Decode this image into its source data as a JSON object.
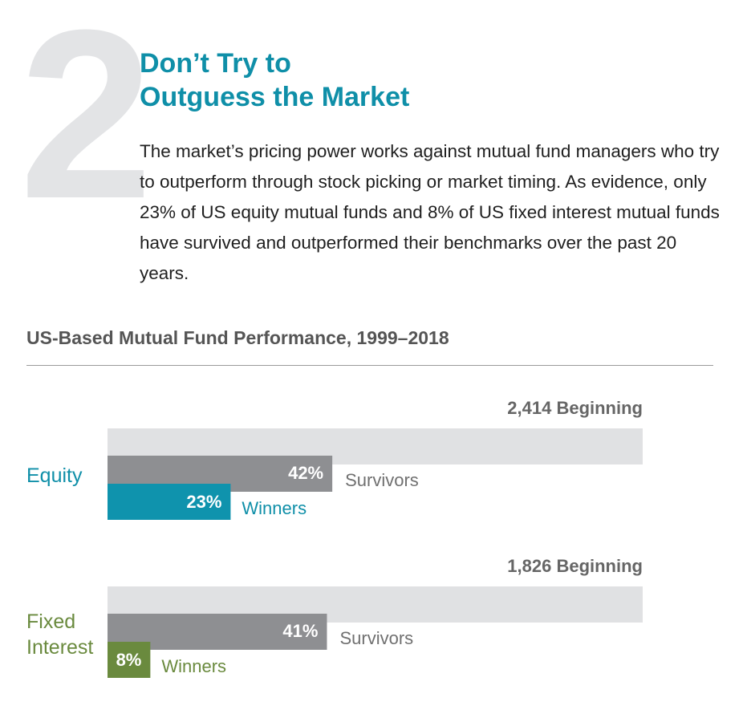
{
  "header": {
    "number": "2",
    "title_line1": "Don’t Try to",
    "title_line2": "Outguess the Market",
    "body": "The market’s pricing power works against mutual fund managers who try to outperform through stock picking or market timing. As evidence, only 23% of US equity mutual funds and 8% of US fixed interest mutual funds have survived and outperformed their benchmarks over the past 20 years."
  },
  "chart_data": {
    "type": "bar",
    "title": "US-Based Mutual Fund Performance, 1999–2018",
    "groups": [
      {
        "label_lines": [
          "Equity"
        ],
        "beginning_label": "2,414 Beginning",
        "beginning": 2414,
        "survivors": 42,
        "survivors_label": "42%",
        "survivors_text": "Survivors",
        "winners": 23,
        "winners_label": "23%",
        "winners_text": "Winners",
        "label_color": "#0f8fa8",
        "winners_color": "#0f93ad",
        "winners_text_color": "#0f8fa8"
      },
      {
        "label_lines": [
          "Fixed",
          "Interest"
        ],
        "beginning_label": "1,826 Beginning",
        "beginning": 1826,
        "survivors": 41,
        "survivors_label": "41%",
        "survivors_text": "Survivors",
        "winners": 8,
        "winners_label": "8%",
        "winners_text": "Winners",
        "label_color": "#6a8a3e",
        "winners_color": "#6a8a3e",
        "winners_text_color": "#6a8a3e"
      }
    ],
    "colors": {
      "beginning_bar": "#e0e1e3",
      "survivors_bar": "#8e8f92",
      "survivors_text": "#707070",
      "beginning_text": "#666666",
      "bar_value_text": "#ffffff"
    }
  }
}
